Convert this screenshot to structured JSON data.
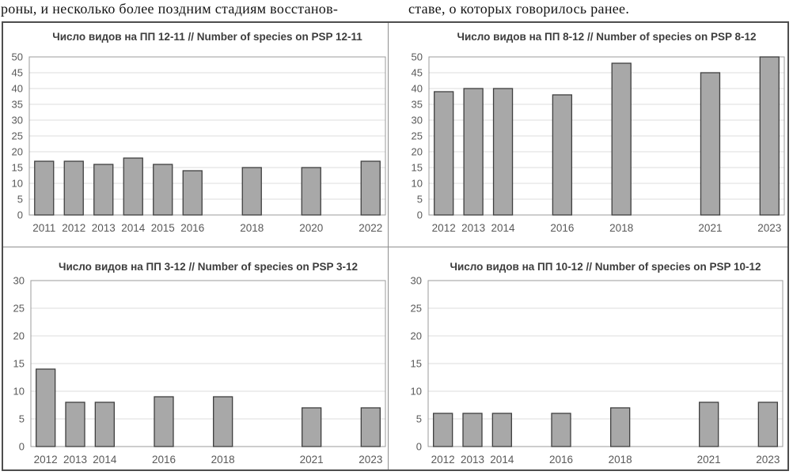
{
  "page": {
    "text_left": "роны, и несколько более поздним стадиям восстанов-",
    "text_right": "ставе, о которых говорилось ранее."
  },
  "colors": {
    "bar_fill": "#a8a8a8",
    "bar_border": "#3f3f3f",
    "gridline": "#dcdcdc",
    "plot_border": "#9b9b9b",
    "tick_label": "#595959",
    "title": "#3d3d3d",
    "figure_border": "#4d4d4d",
    "divider": "#8f8f8f"
  },
  "chart_data": [
    {
      "type": "bar",
      "title": "Число видов на ПП 12-11 // Number of species on PSP 12-11",
      "categories": [
        "2011",
        "2012",
        "2013",
        "2014",
        "2015",
        "2016",
        "2018",
        "2020",
        "2022"
      ],
      "values": [
        17,
        17,
        16,
        18,
        16,
        14,
        15,
        15,
        17
      ],
      "xrange": [
        2011,
        2022
      ],
      "ylim": [
        0,
        50
      ],
      "ytick_step": 5,
      "grid": true,
      "legend": "none",
      "xlabel": "",
      "ylabel": ""
    },
    {
      "type": "bar",
      "title": "Число видов на ПП 8-12 // Number of species on PSP 8-12",
      "categories": [
        "2012",
        "2013",
        "2014",
        "2016",
        "2018",
        "2021",
        "2023"
      ],
      "values": [
        39,
        40,
        40,
        38,
        48,
        45,
        50
      ],
      "xrange": [
        2012,
        2023
      ],
      "ylim": [
        0,
        50
      ],
      "ytick_step": 5,
      "grid": true,
      "legend": "none",
      "xlabel": "",
      "ylabel": ""
    },
    {
      "type": "bar",
      "title": "Число видов на ПП 3-12 // Number of species on PSP 3-12",
      "categories": [
        "2012",
        "2013",
        "2014",
        "2016",
        "2018",
        "2021",
        "2023"
      ],
      "values": [
        14,
        8,
        8,
        9,
        9,
        7,
        7
      ],
      "xrange": [
        2012,
        2023
      ],
      "ylim": [
        0,
        30
      ],
      "ytick_step": 5,
      "grid": true,
      "legend": "none",
      "xlabel": "",
      "ylabel": ""
    },
    {
      "type": "bar",
      "title": "Число видов на ПП 10-12 // Number of species on PSP 10-12",
      "categories": [
        "2012",
        "2013",
        "2014",
        "2016",
        "2018",
        "2021",
        "2023"
      ],
      "values": [
        6,
        6,
        6,
        6,
        7,
        8,
        8
      ],
      "xrange": [
        2012,
        2023
      ],
      "ylim": [
        0,
        30
      ],
      "ytick_step": 5,
      "grid": true,
      "legend": "none",
      "xlabel": "",
      "ylabel": ""
    }
  ]
}
